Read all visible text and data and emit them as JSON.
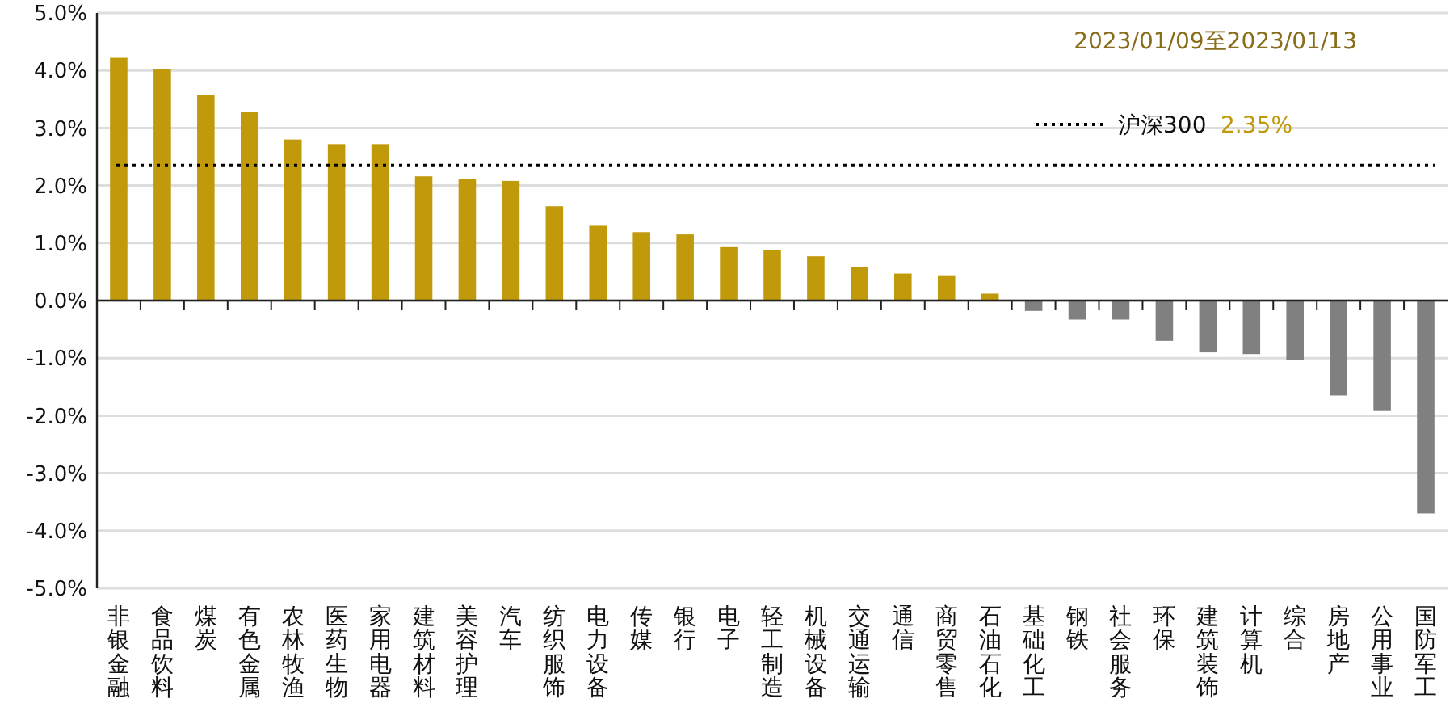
{
  "chart_data": {
    "type": "bar",
    "categories": [
      "非银金融",
      "食品饮料",
      "煤炭",
      "有色金属",
      "农林牧渔",
      "医药生物",
      "家用电器",
      "建筑材料",
      "美容护理",
      "汽车",
      "纺织服饰",
      "电力设备",
      "传媒",
      "银行",
      "电子",
      "轻工制造",
      "机械设备",
      "交通运输",
      "通信",
      "商贸零售",
      "石油石化",
      "基础化工",
      "钢铁",
      "社会服务",
      "环保",
      "建筑装饰",
      "计算机",
      "综合",
      "房地产",
      "公用事业",
      "国防军工"
    ],
    "values": [
      4.22,
      4.03,
      3.58,
      3.28,
      2.8,
      2.72,
      2.72,
      2.16,
      2.12,
      2.08,
      1.64,
      1.3,
      1.19,
      1.15,
      0.93,
      0.88,
      0.77,
      0.58,
      0.47,
      0.44,
      0.12,
      -0.18,
      -0.33,
      -0.33,
      -0.7,
      -0.9,
      -0.93,
      -1.03,
      -1.65,
      -1.92,
      -3.7
    ],
    "colors": [
      "#c09a0b",
      "#c09a0b",
      "#c09a0b",
      "#c09a0b",
      "#c09a0b",
      "#c09a0b",
      "#c09a0b",
      "#c09a0b",
      "#c09a0b",
      "#c09a0b",
      "#c09a0b",
      "#c09a0b",
      "#c09a0b",
      "#c09a0b",
      "#c09a0b",
      "#c09a0b",
      "#c09a0b",
      "#c09a0b",
      "#c09a0b",
      "#c09a0b",
      "#c09a0b",
      "#808080",
      "#808080",
      "#808080",
      "#808080",
      "#808080",
      "#808080",
      "#808080",
      "#808080",
      "#808080",
      "#808080"
    ],
    "ylim": [
      -5,
      5
    ],
    "yticks": [
      {
        "value": -5,
        "label": "-5.0%"
      },
      {
        "value": -4,
        "label": "-4.0%"
      },
      {
        "value": -3,
        "label": "-3.0%"
      },
      {
        "value": -2,
        "label": "-2.0%"
      },
      {
        "value": -1,
        "label": "-1.0%"
      },
      {
        "value": 0,
        "label": "0.0%"
      },
      {
        "value": 1,
        "label": "1.0%"
      },
      {
        "value": 2,
        "label": "2.0%"
      },
      {
        "value": 3,
        "label": "3.0%"
      },
      {
        "value": 4,
        "label": "4.0%"
      },
      {
        "value": 5,
        "label": "5.0%"
      }
    ],
    "grid": "y",
    "ref_lines": [
      {
        "axis": "y",
        "value": 2.35,
        "label": "沪深300",
        "line_style": "dotted",
        "color": "#000000"
      }
    ],
    "annotations": [
      "2023/01/09至2023/01/13",
      "2.35%"
    ],
    "legend": "top right"
  }
}
